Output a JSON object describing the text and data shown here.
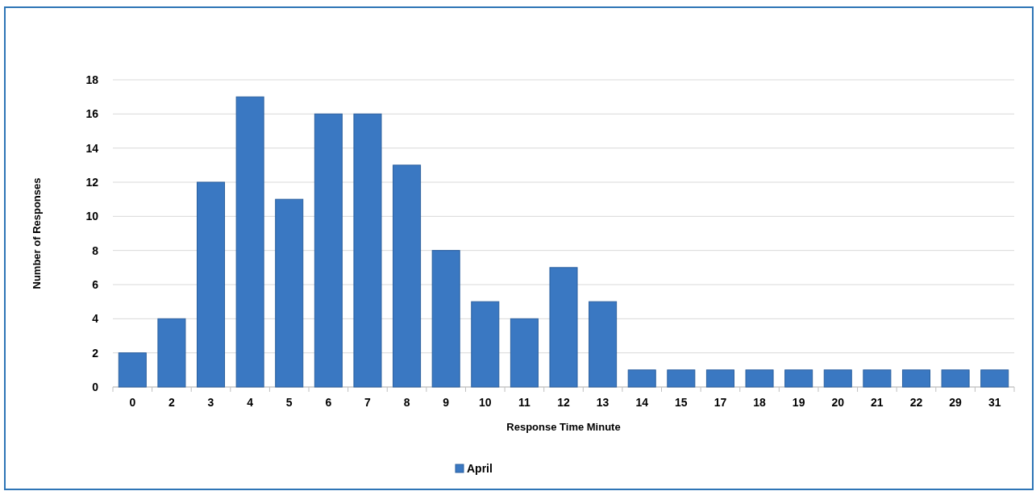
{
  "chart_data": {
    "type": "bar",
    "xlabel": "Response Time Minute",
    "ylabel": "Number of Responses",
    "categories": [
      "0",
      "2",
      "3",
      "4",
      "5",
      "6",
      "7",
      "8",
      "9",
      "10",
      "11",
      "12",
      "13",
      "14",
      "15",
      "17",
      "18",
      "19",
      "20",
      "21",
      "22",
      "29",
      "31"
    ],
    "series": [
      {
        "name": "April",
        "color": "#3a78c2",
        "values": [
          2,
          4,
          12,
          17,
          11,
          16,
          16,
          13,
          8,
          5,
          4,
          7,
          5,
          1,
          1,
          1,
          1,
          1,
          1,
          1,
          1,
          1,
          1
        ]
      }
    ],
    "ylim": [
      0,
      18
    ],
    "yticks": [
      0,
      2,
      4,
      6,
      8,
      10,
      12,
      14,
      16,
      18
    ],
    "grid": "y",
    "legend": "bottom"
  }
}
